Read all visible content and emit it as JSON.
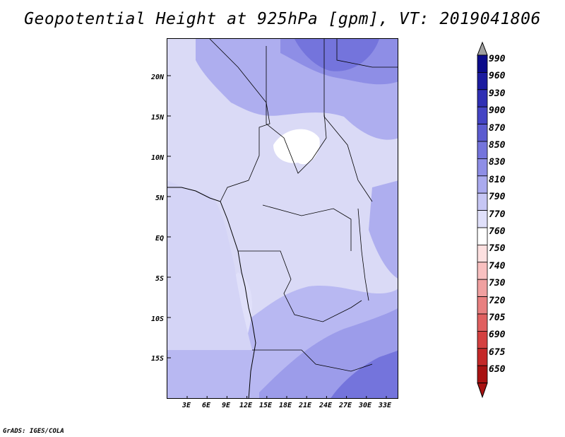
{
  "title": "Geopotential Height at 925hPa [gpm], VT: 2019041806",
  "map": {
    "lat_labels": [
      "20N",
      "15N",
      "10N",
      "5N",
      "EQ",
      "5S",
      "10S",
      "15S"
    ],
    "lon_labels": [
      "3E",
      "6E",
      "9E",
      "12E",
      "15E",
      "18E",
      "21E",
      "24E",
      "27E",
      "30E",
      "33E"
    ],
    "extent": {
      "lon": [
        0,
        35
      ],
      "lat": [
        -20,
        24
      ]
    }
  },
  "colorbar": {
    "labels": [
      "990",
      "960",
      "930",
      "900",
      "870",
      "850",
      "830",
      "810",
      "790",
      "770",
      "760",
      "750",
      "740",
      "730",
      "720",
      "705",
      "690",
      "675",
      "650"
    ],
    "colors": [
      "#0b0b8a",
      "#1c1ca0",
      "#2f2fb4",
      "#4444c4",
      "#5c5cd0",
      "#7474dc",
      "#8e8ee6",
      "#aaaaee",
      "#c6c6f4",
      "#e0e0fa",
      "#ffffff",
      "#fde0e0",
      "#f8c0c0",
      "#f0a0a0",
      "#e88080",
      "#e06060",
      "#d44040",
      "#c42828",
      "#a81212"
    ],
    "top_triangle_color": "#a0a0a0",
    "bottom_triangle_color": "#a81212"
  },
  "credit": "GrADS: IGES/COLA"
}
